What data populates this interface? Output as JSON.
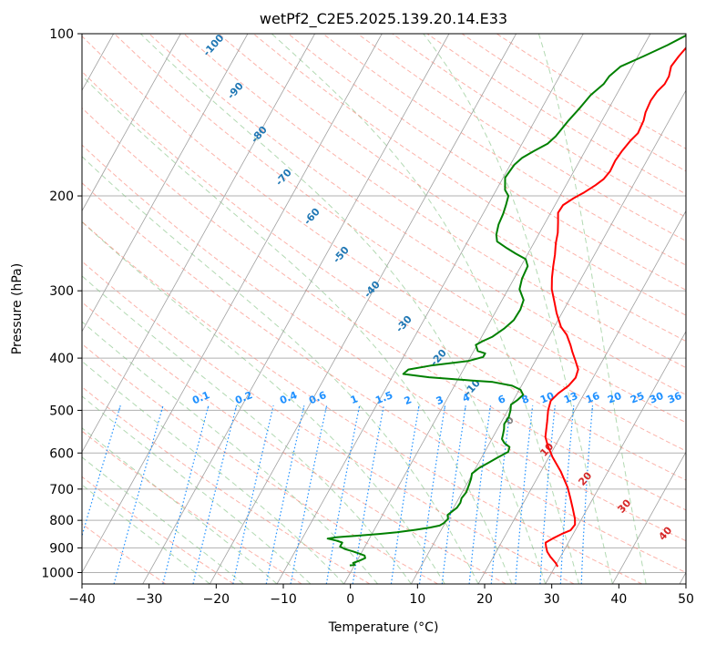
{
  "chart_data": {
    "type": "line",
    "title": "wetPf2_C2E5.2025.139.20.14.E33",
    "xlabel": "Temperature (°C)",
    "ylabel": "Pressure (hPa)",
    "xlim": [
      -40,
      50
    ],
    "ylim": [
      1050,
      100
    ],
    "y_scale": "log",
    "grid": true,
    "x_ticks": [
      "−40",
      "−30",
      "−20",
      "−10",
      "0",
      "10",
      "20",
      "30",
      "40",
      "50"
    ],
    "y_ticks": [
      {
        "p": 100,
        "label": "100"
      },
      {
        "p": 200,
        "label": "200"
      },
      {
        "p": 300,
        "label": "300"
      },
      {
        "p": 400,
        "label": "400"
      },
      {
        "p": 500,
        "label": "500"
      },
      {
        "p": 600,
        "label": "600"
      },
      {
        "p": 700,
        "label": "700"
      },
      {
        "p": 800,
        "label": "800"
      },
      {
        "p": 900,
        "label": "900"
      },
      {
        "p": 1000,
        "label": "1000"
      }
    ],
    "series": [
      {
        "color": "#ff0000",
        "points": [
          [
            30.4,
            975
          ],
          [
            29.8,
            960
          ],
          [
            28.5,
            935
          ],
          [
            27.6,
            915
          ],
          [
            27.0,
            895
          ],
          [
            26.6,
            880
          ],
          [
            27.3,
            865
          ],
          [
            28.3,
            848
          ],
          [
            29.3,
            835
          ],
          [
            29.5,
            815
          ],
          [
            29.0,
            795
          ],
          [
            27.8,
            760
          ],
          [
            26.5,
            725
          ],
          [
            25.3,
            695
          ],
          [
            23.0,
            650
          ],
          [
            20.5,
            610
          ],
          [
            18.8,
            580
          ],
          [
            17.8,
            560
          ],
          [
            16.8,
            525
          ],
          [
            16.0,
            500
          ],
          [
            15.6,
            480
          ],
          [
            16.1,
            465
          ],
          [
            17.0,
            450
          ],
          [
            17.4,
            435
          ],
          [
            17.1,
            420
          ],
          [
            16.0,
            405
          ],
          [
            14.8,
            390
          ],
          [
            13.9,
            378
          ],
          [
            12.5,
            362
          ],
          [
            11.0,
            350
          ],
          [
            9.2,
            330
          ],
          [
            7.9,
            314
          ],
          [
            6.5,
            298
          ],
          [
            5.6,
            284
          ],
          [
            4.8,
            270
          ],
          [
            4.1,
            257
          ],
          [
            3.3,
            245
          ],
          [
            2.7,
            234
          ],
          [
            1.9,
            224
          ],
          [
            1.1,
            215
          ],
          [
            1.2,
            208
          ],
          [
            2.2,
            202
          ],
          [
            3.3,
            197
          ],
          [
            4.4,
            191
          ],
          [
            5.1,
            186
          ],
          [
            5.4,
            180
          ],
          [
            5.3,
            172
          ],
          [
            5.5,
            165
          ],
          [
            5.9,
            158
          ],
          [
            6.4,
            153
          ],
          [
            6.2,
            145
          ],
          [
            5.8,
            140
          ],
          [
            5.6,
            133
          ],
          [
            5.8,
            128
          ],
          [
            6.3,
            124
          ],
          [
            6.3,
            120
          ],
          [
            5.8,
            115
          ],
          [
            6.1,
            110
          ],
          [
            6.5,
            106
          ],
          [
            6.4,
            103
          ],
          [
            7.1,
            100
          ]
        ]
      },
      {
        "color": "#008000",
        "points": [
          [
            -0.7,
            970
          ],
          [
            0.0,
            968
          ],
          [
            -0.4,
            960
          ],
          [
            0.4,
            950
          ],
          [
            1.0,
            940
          ],
          [
            0.7,
            930
          ],
          [
            -0.3,
            922
          ],
          [
            -1.3,
            914
          ],
          [
            -2.7,
            905
          ],
          [
            -3.7,
            895
          ],
          [
            -3.7,
            880
          ],
          [
            -4.8,
            872
          ],
          [
            -6.2,
            865
          ],
          [
            -5.0,
            860
          ],
          [
            -2.4,
            855
          ],
          [
            1.1,
            848
          ],
          [
            3.6,
            842
          ],
          [
            6.2,
            833
          ],
          [
            8.1,
            825
          ],
          [
            9.4,
            818
          ],
          [
            9.8,
            810
          ],
          [
            10.1,
            795
          ],
          [
            9.7,
            782
          ],
          [
            10.1,
            770
          ],
          [
            10.5,
            758
          ],
          [
            10.6,
            742
          ],
          [
            10.4,
            728
          ],
          [
            10.6,
            710
          ],
          [
            10.4,
            688
          ],
          [
            10.2,
            670
          ],
          [
            9.9,
            655
          ],
          [
            10.5,
            640
          ],
          [
            11.5,
            625
          ],
          [
            12.4,
            612
          ],
          [
            13.5,
            597
          ],
          [
            13.3,
            585
          ],
          [
            12.2,
            575
          ],
          [
            11.5,
            565
          ],
          [
            11.3,
            555
          ],
          [
            11.0,
            542
          ],
          [
            10.6,
            530
          ],
          [
            10.7,
            515
          ],
          [
            10.4,
            500
          ],
          [
            10.0,
            488
          ],
          [
            10.6,
            478
          ],
          [
            11.0,
            468
          ],
          [
            10.2,
            458
          ],
          [
            8.6,
            450
          ],
          [
            5.4,
            443
          ],
          [
            2.0,
            440
          ],
          [
            -4.5,
            434
          ],
          [
            -8.6,
            428
          ],
          [
            -8.2,
            420
          ],
          [
            -5.2,
            413
          ],
          [
            0.0,
            405
          ],
          [
            1.9,
            398
          ],
          [
            1.9,
            392
          ],
          [
            0.6,
            388
          ],
          [
            -0.2,
            378
          ],
          [
            0.5,
            372
          ],
          [
            1.6,
            365
          ],
          [
            2.7,
            352
          ],
          [
            3.4,
            340
          ],
          [
            3.5,
            325
          ],
          [
            3.2,
            312
          ],
          [
            1.7,
            298
          ],
          [
            1.2,
            285
          ],
          [
            1.0,
            270
          ],
          [
            0.1,
            262
          ],
          [
            -1.8,
            256
          ],
          [
            -3.6,
            250
          ],
          [
            -5.6,
            243
          ],
          [
            -6.3,
            236
          ],
          [
            -6.8,
            226
          ],
          [
            -7.0,
            216
          ],
          [
            -7.3,
            208
          ],
          [
            -7.7,
            200
          ],
          [
            -8.7,
            195
          ],
          [
            -9.7,
            185
          ],
          [
            -9.4,
            175
          ],
          [
            -8.8,
            170
          ],
          [
            -7.6,
            165
          ],
          [
            -6.2,
            160
          ],
          [
            -5.6,
            155
          ],
          [
            -5.0,
            145
          ],
          [
            -4.4,
            138
          ],
          [
            -3.8,
            130
          ],
          [
            -2.8,
            124
          ],
          [
            -2.6,
            120
          ],
          [
            -1.7,
            115
          ],
          [
            0.9,
            110
          ],
          [
            3.5,
            105
          ],
          [
            5.8,
            100
          ]
        ]
      }
    ],
    "dry_adiabat_labels": [
      "-100",
      "-90",
      "-80",
      "-70",
      "-60",
      "-50",
      "-40",
      "-30",
      "-20",
      "-10",
      "0",
      "10",
      "20",
      "30",
      "40"
    ],
    "mixing_ratio_labels": [
      "0.1",
      "0.2",
      "0.4",
      "0.6",
      "1",
      "1.5",
      "2",
      "3",
      "4",
      "6",
      "8",
      "10",
      "13",
      "16",
      "20",
      "25",
      "30",
      "36"
    ],
    "colors": {
      "temperature": "#ff0000",
      "dewpoint": "#008000",
      "isotherm": "#a0a0a0",
      "dry_adiabat": "#fa8072",
      "moist_adiabat": "#7fbf7f",
      "mixing_ratio": "#1e90ff",
      "dry_label": "#1f77b4",
      "warm_label": "#d62728",
      "zero_label": "#808080"
    }
  }
}
